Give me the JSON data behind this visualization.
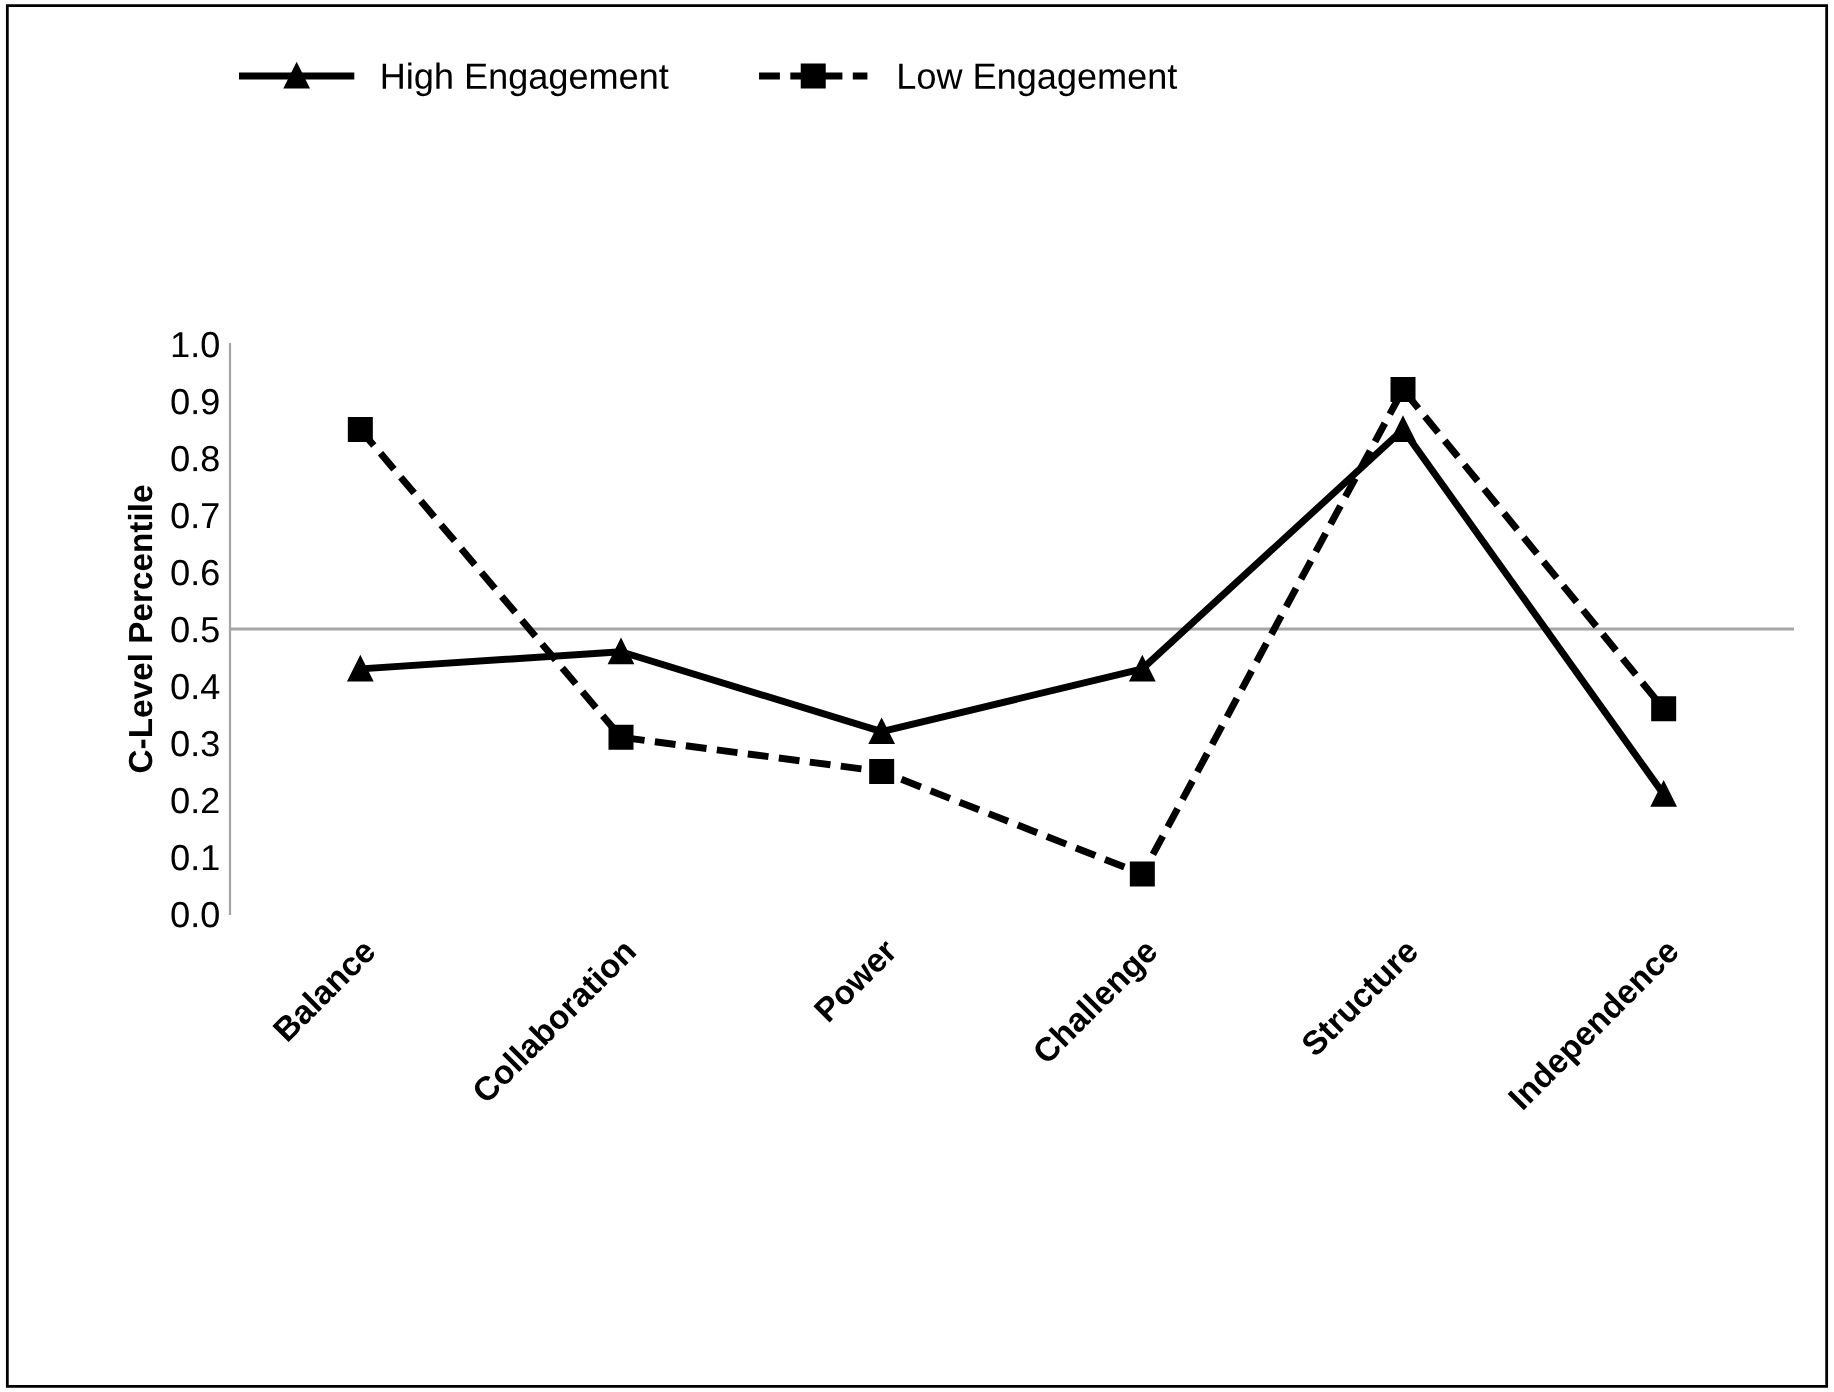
{
  "chart_data": {
    "type": "line",
    "ylabel": "C-Level Percentile",
    "categories": [
      "Balance",
      "Collaboration",
      "Power",
      "Challenge",
      "Structure",
      "Independence"
    ],
    "series": [
      {
        "name": "High Engagement",
        "color": "#000000",
        "marker": "triangle",
        "line_style": "solid",
        "values": [
          0.43,
          0.46,
          0.32,
          0.43,
          0.85,
          0.21
        ]
      },
      {
        "name": "Low Engagement",
        "color": "#000000",
        "marker": "square",
        "line_style": "dashed",
        "values": [
          0.85,
          0.31,
          0.25,
          0.07,
          0.92,
          0.36
        ]
      }
    ],
    "ylim": [
      0,
      1
    ],
    "yticks": [
      {
        "value": 0,
        "label": "0.0"
      },
      {
        "value": 0.1,
        "label": "0.1"
      },
      {
        "value": 0.2,
        "label": "0.2"
      },
      {
        "value": 0.3,
        "label": "0.3"
      },
      {
        "value": 0.4,
        "label": "0.4"
      },
      {
        "value": 0.5,
        "label": "0.5"
      },
      {
        "value": 0.6,
        "label": "0.6"
      },
      {
        "value": 0.7,
        "label": "0.7"
      },
      {
        "value": 0.8,
        "label": "0.8"
      },
      {
        "value": 0.9,
        "label": "0.9"
      },
      {
        "value": 1.0,
        "label": "1.0"
      }
    ],
    "ref_lines": [
      {
        "axis": "y",
        "value": 0.5,
        "color": "#a6a6a6"
      }
    ],
    "grid": false,
    "legend": "top left"
  }
}
